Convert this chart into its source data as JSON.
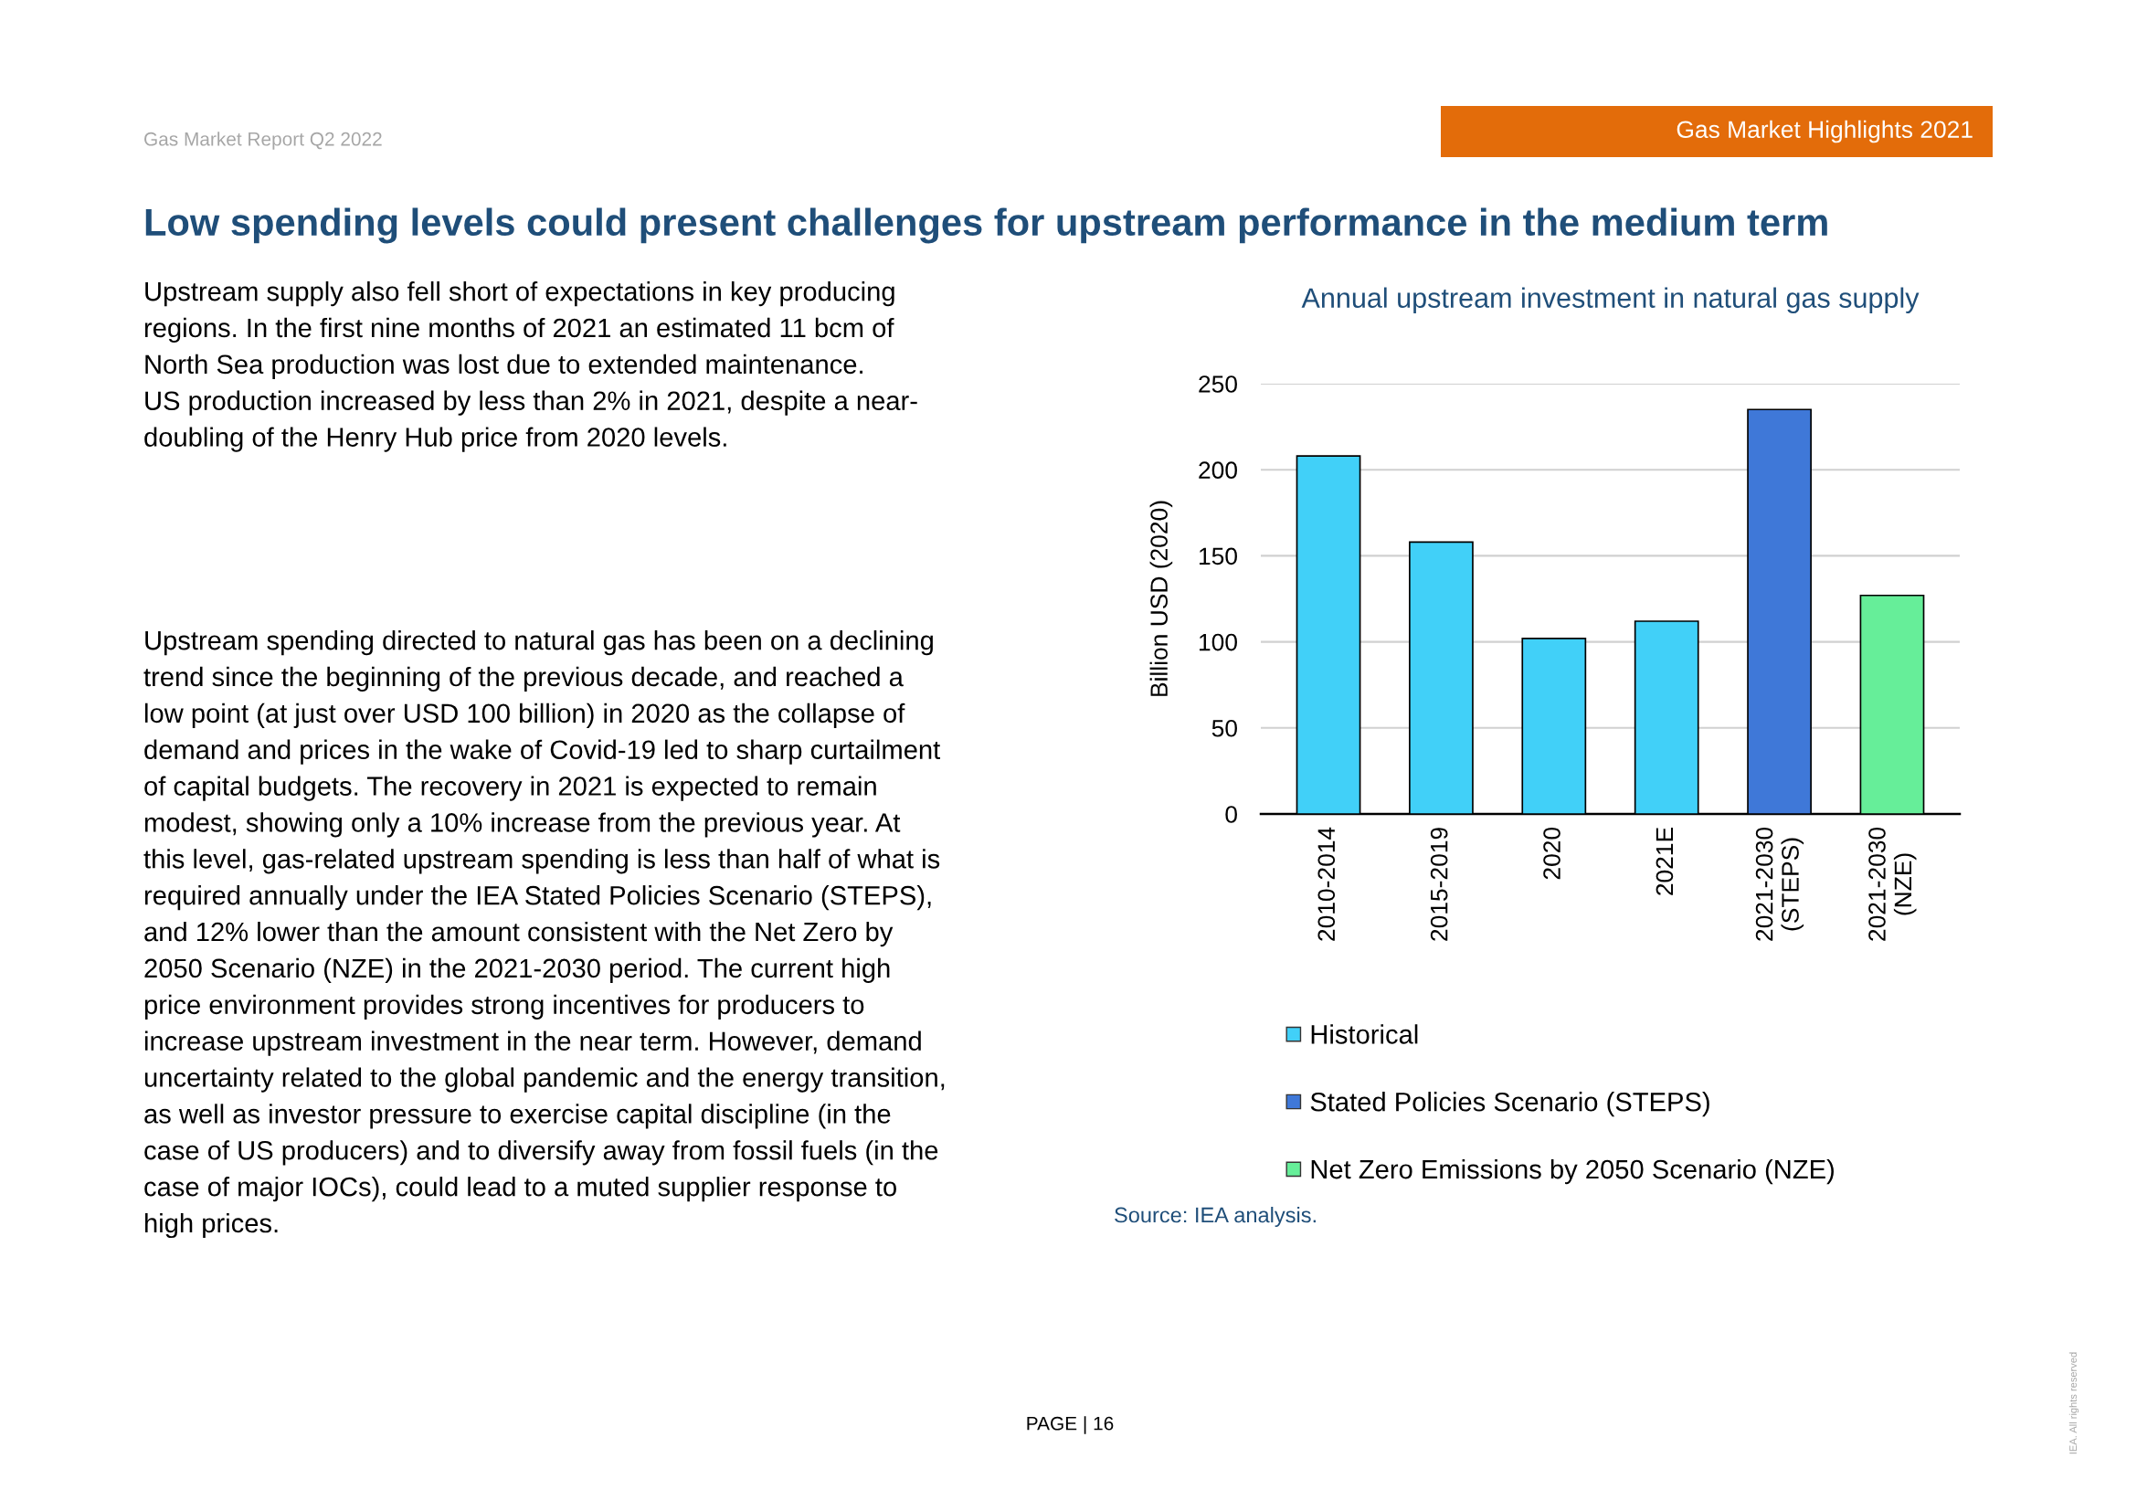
{
  "chart_data": {
    "type": "bar",
    "title": "Annual upstream investment in natural gas supply",
    "ylabel": "Billion USD (2020)",
    "categories": [
      "2010-2014",
      "2015-2019",
      "2020",
      "2021E",
      "2021-2030\n(STEPS)",
      "2021-2030\n(NZE)"
    ],
    "series": [
      {
        "name": "Historical",
        "color": "#41d0f8",
        "values": [
          208,
          158,
          102,
          112,
          null,
          null
        ]
      },
      {
        "name": "Stated Policies Scenario (STEPS)",
        "color": "#3f78d8",
        "values": [
          null,
          null,
          null,
          null,
          235,
          null
        ]
      },
      {
        "name": "Net Zero Emissions by 2050 Scenario (NZE)",
        "color": "#66ee99",
        "values": [
          null,
          null,
          null,
          null,
          null,
          127
        ]
      }
    ],
    "ylim": [
      0,
      250
    ],
    "yticks": [
      0,
      50,
      100,
      150,
      200,
      250
    ],
    "grid": "y",
    "legend": "bottom",
    "annotations": [
      "Gas Market Report Q2 2022",
      "Gas Market Highlights 2021",
      "Low spending levels could present challenges for upstream performance in the medium term",
      "Upstream supply also fell short of expectations in key producing\nregions. In the first nine months of 2021 an estimated 11 bcm of\nNorth Sea production was lost due to extended maintenance.\nUS production increased by less than 2% in 2021, despite a near-\ndoubling of the Henry Hub price from 2020 levels.",
      "Upstream spending directed to natural gas has been on a declining\ntrend since the beginning of the previous decade, and reached a\nlow point (at just over USD 100 billion) in 2020 as the collapse of\ndemand and prices in the wake of Covid-19 led to sharp curtailment\nof capital budgets. The recovery in 2021 is expected to remain\nmodest, showing only a 10% increase from the previous year. At\nthis level, gas-related upstream spending is less than half of what is\nrequired annually under the IEA Stated Policies Scenario (STEPS),\nand 12% lower than the amount consistent with the Net Zero by\n2050 Scenario (NZE) in the 2021-2030 period. The current high\nprice environment provides strong incentives for producers to\nincrease upstream investment in the near term. However, demand\nuncertainty related to the global pandemic and the energy transition,\nas well as investor pressure to exercise capital discipline (in the\ncase of US producers) and to diversify away from fossil fuels (in the\ncase of major IOCs), could lead to a muted supplier response to\nhigh prices.",
      "Source: IEA analysis.",
      "PAGE | 16",
      "IEA. All rights reserved"
    ]
  }
}
